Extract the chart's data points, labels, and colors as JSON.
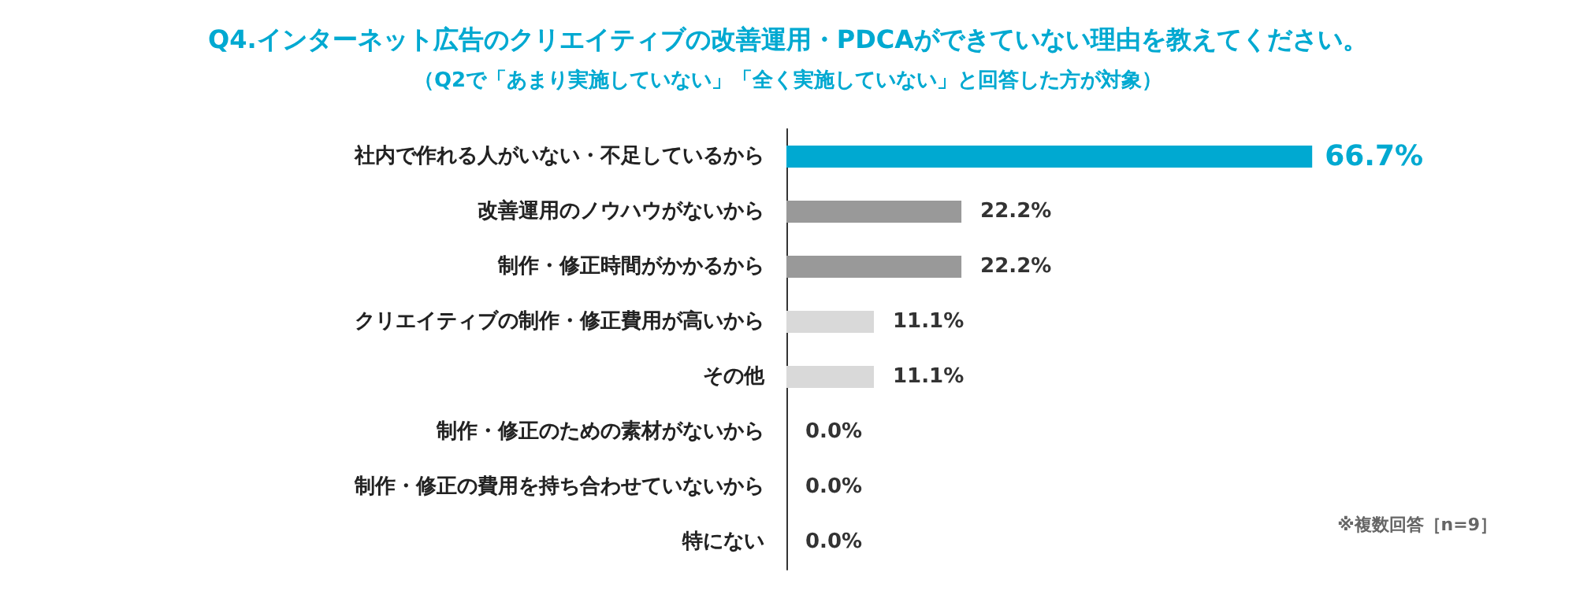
{
  "chart_data": {
    "type": "bar",
    "orientation": "horizontal",
    "title": "Q4.インターネット広告のクリエイティブの改善運用・PDCAができていない理由を教えてください。",
    "subtitle": "（Q2で「あまり実施していない」「全く実施していない」と回答した方が対象）",
    "categories": [
      "社内で作れる人がいない・不足しているから",
      "改善運用のノウハウがないから",
      "制作・修正時間がかかるから",
      "クリエイティブの制作・修正費用が高いから",
      "その他",
      "制作・修正のための素材がないから",
      "制作・修正の費用を持ち合わせていないから",
      "特にない"
    ],
    "values": [
      66.7,
      22.2,
      22.2,
      11.1,
      11.1,
      0,
      0,
      0
    ],
    "value_labels": [
      "66.7%",
      "22.2%",
      "22.2%",
      "11.1%",
      "11.1%",
      "0.0%",
      "0.0%",
      "0.0%"
    ],
    "colors": [
      "#00a9d1",
      "#999999",
      "#999999",
      "#d9d9d9",
      "#d9d9d9",
      "#d9d9d9",
      "#d9d9d9",
      "#d9d9d9"
    ],
    "annotations": [
      "※複数回答［n=9］"
    ]
  }
}
